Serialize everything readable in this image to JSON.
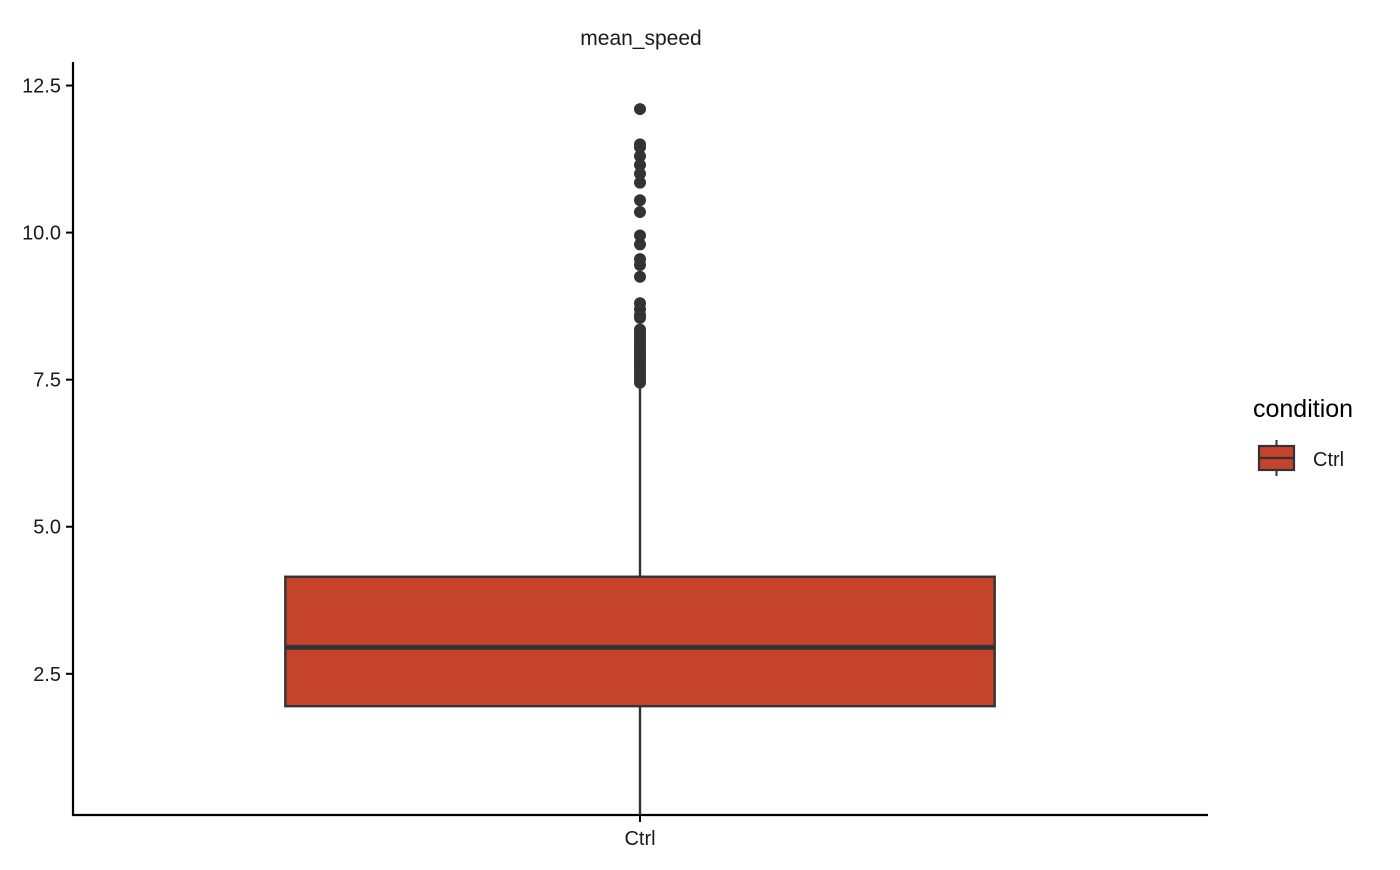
{
  "chart_data": {
    "type": "box",
    "title": "mean_speed",
    "xlabel": "",
    "ylabel": "",
    "categories": [
      "Ctrl"
    ],
    "ylim": [
      0.1,
      12.9
    ],
    "yticks": [
      2.5,
      5.0,
      7.5,
      10.0,
      12.5
    ],
    "ytick_labels": [
      "2.5",
      "5.0",
      "7.5",
      "10.0",
      "12.5"
    ],
    "grid": false,
    "boxes": [
      {
        "category": "Ctrl",
        "whisker_low": 0.1,
        "q1": 1.95,
        "median": 2.95,
        "q3": 4.15,
        "whisker_high": 7.45,
        "outliers": [
          7.45,
          7.5,
          7.55,
          7.6,
          7.65,
          7.7,
          7.75,
          7.8,
          7.85,
          7.9,
          7.95,
          8.0,
          8.05,
          8.1,
          8.15,
          8.2,
          8.25,
          8.3,
          8.35,
          8.55,
          8.6,
          8.7,
          8.8,
          9.25,
          9.45,
          9.55,
          9.8,
          9.95,
          10.35,
          10.55,
          10.85,
          11.0,
          11.15,
          11.3,
          11.45,
          11.5,
          12.1
        ]
      }
    ],
    "legend": {
      "title": "condition",
      "entries": [
        "Ctrl"
      ],
      "position": "right"
    },
    "colors": {
      "box_fill": "#c5432b",
      "box_outline": "#333333",
      "axis": "#000000",
      "text": "#1a1a1a"
    }
  }
}
